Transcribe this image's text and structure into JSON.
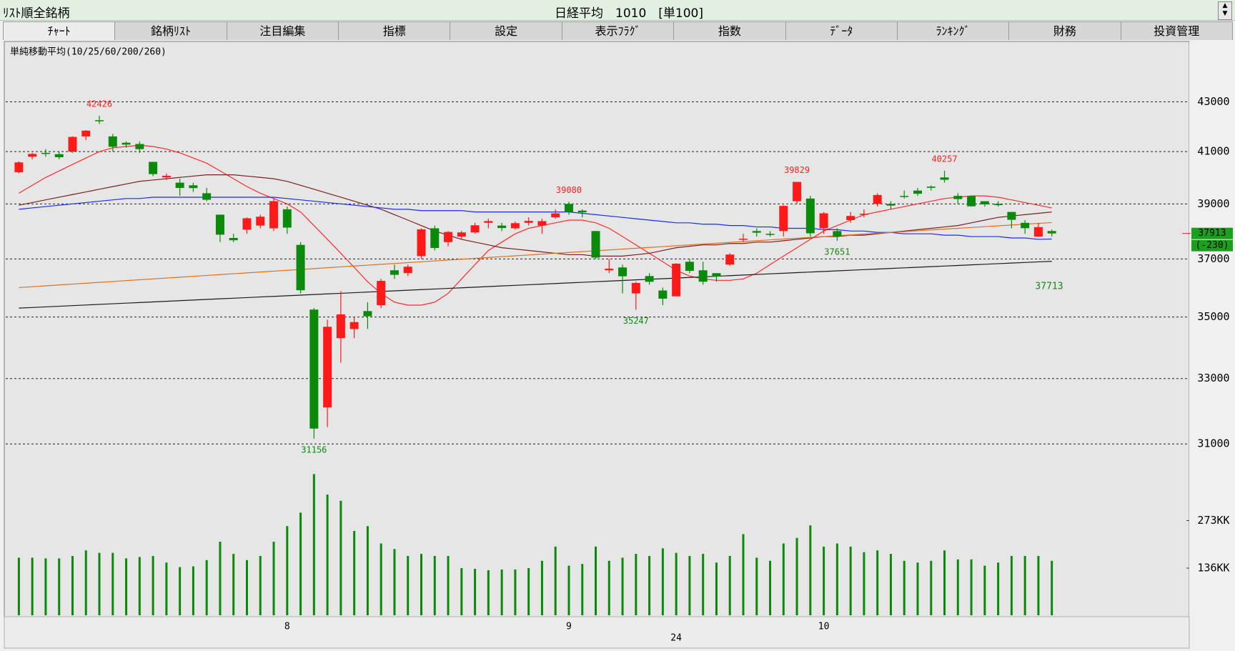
{
  "header": {
    "title": "ﾘｽﾄ順全銘柄",
    "instrument": "日経平均　1010　[単100]"
  },
  "tabs": [
    "ﾁｬｰﾄ",
    "銘柄ﾘｽﾄ",
    "注目編集",
    "指標",
    "設定",
    "表示ﾌﾗｸﾞ",
    "指数",
    "ﾃﾞｰﾀ",
    "ﾗﾝｷﾝｸﾞ",
    "財務",
    "投資管理"
  ],
  "chart_data": {
    "type": "candlestick",
    "subtitle": "単純移動平均(10/25/60/200/260)",
    "log": true,
    "grid": true,
    "up_color": "#ff1a1a",
    "down_color": "#0a8a0a",
    "categories": [
      null,
      null,
      null,
      null,
      null,
      null,
      null,
      null,
      null,
      null,
      null,
      null,
      null,
      null,
      null,
      null,
      null,
      null,
      null,
      null,
      "8",
      null,
      null,
      null,
      null,
      null,
      null,
      null,
      null,
      null,
      null,
      null,
      null,
      null,
      null,
      null,
      null,
      null,
      null,
      null,
      null,
      "9",
      null,
      null,
      null,
      null,
      null,
      null,
      null,
      null,
      null,
      null,
      null,
      null,
      null,
      null,
      null,
      null,
      null,
      null,
      "10",
      null,
      null,
      null,
      null,
      null,
      null,
      null,
      null,
      null,
      null,
      null,
      null,
      null,
      null,
      null,
      null,
      null
    ],
    "year_label": "24",
    "ohlc": {
      "open": [
        40200,
        40800,
        40950,
        40900,
        41000,
        41600,
        42250,
        41600,
        41350,
        41300,
        40600,
        40000,
        39800,
        39700,
        39400,
        38600,
        37750,
        38050,
        38200,
        38100,
        38800,
        37500,
        35250,
        32100,
        34300,
        34600,
        35200,
        35400,
        36600,
        36500,
        37100,
        38100,
        37600,
        37800,
        37950,
        38300,
        38200,
        38100,
        38300,
        38200,
        38500,
        39000,
        38750,
        38000,
        36600,
        36700,
        35800,
        36400,
        35900,
        35700,
        36900,
        36600,
        36500,
        36800,
        37700,
        38000,
        37900,
        38000,
        39100,
        39200,
        38100,
        38000,
        38400,
        38600,
        39000,
        39000,
        39300,
        39500,
        39650,
        40000,
        39300,
        39300,
        39100,
        39000,
        38700,
        38300,
        37800,
        38000
      ],
      "high": [
        40620,
        40950,
        41100,
        41000,
        41600,
        41850,
        42426,
        41700,
        41400,
        41400,
        40600,
        40150,
        39950,
        39800,
        39600,
        38600,
        37900,
        38500,
        38600,
        39200,
        38900,
        37600,
        35300,
        34911,
        35880,
        35000,
        35500,
        36300,
        36800,
        36800,
        38100,
        38200,
        38000,
        38000,
        38300,
        38450,
        38300,
        38350,
        38500,
        38450,
        38800,
        39080,
        38800,
        38000,
        37000,
        36800,
        36200,
        36500,
        36000,
        36850,
        37000,
        36900,
        36500,
        37200,
        37900,
        38100,
        38000,
        38950,
        39829,
        39300,
        38700,
        38100,
        38700,
        38800,
        39400,
        39100,
        39500,
        39600,
        39700,
        40257,
        39400,
        39300,
        39100,
        39100,
        38700,
        38400,
        38300,
        38050
      ],
      "low": [
        40160,
        40700,
        40800,
        40700,
        40950,
        41450,
        42100,
        41000,
        41150,
        40950,
        40050,
        39900,
        39300,
        39450,
        39100,
        37600,
        37600,
        37900,
        38100,
        38000,
        37900,
        35800,
        31156,
        31500,
        33500,
        34300,
        34600,
        35300,
        36300,
        36400,
        37000,
        37300,
        37450,
        37700,
        37900,
        38100,
        38000,
        38050,
        38200,
        37900,
        38450,
        38600,
        38500,
        37000,
        36500,
        35800,
        35247,
        36100,
        35400,
        35700,
        36500,
        36100,
        36200,
        36750,
        37600,
        37800,
        37800,
        37800,
        39000,
        37800,
        37900,
        37651,
        38300,
        38500,
        38900,
        38800,
        39200,
        39300,
        39500,
        39800,
        39000,
        38900,
        38900,
        38900,
        38100,
        37900,
        37800,
        37800
      ],
      "close": [
        40580,
        40910,
        40910,
        40780,
        41580,
        41830,
        42224,
        41190,
        41275,
        41097,
        40126,
        40063,
        39599,
        39594,
        39154,
        37869,
        37667,
        38468,
        38525,
        39101,
        38126,
        35909,
        31458,
        34675,
        35089,
        34831,
        35025,
        36232,
        36442,
        36726,
        38062,
        37389,
        37967,
        37951,
        38211,
        38364,
        38110,
        38288,
        38371,
        38362,
        38647,
        38700,
        38686,
        37047,
        36657,
        36391,
        36159,
        36200,
        35620,
        36833,
        36581,
        36203,
        36380,
        37155,
        37723,
        37940,
        37870,
        38925,
        39829,
        37919,
        38651,
        37808,
        38552,
        38635,
        39332,
        38937,
        39277,
        39380,
        39605,
        39910,
        39180,
        38911,
        38981,
        38954,
        38411,
        38104,
        38143,
        37913
      ]
    },
    "moving_averages": [
      {
        "color": "#ff2a2a",
        "values": [
          39400,
          39700,
          40000,
          40250,
          40500,
          40750,
          41000,
          41150,
          41200,
          41250,
          41200,
          41100,
          40950,
          40750,
          40550,
          40250,
          39950,
          39650,
          39400,
          39200,
          39000,
          38700,
          38200,
          37700,
          37200,
          36700,
          36200,
          35800,
          35500,
          35400,
          35400,
          35500,
          35800,
          36300,
          36800,
          37300,
          37600,
          37900,
          38100,
          38200,
          38300,
          38400,
          38400,
          38300,
          38100,
          37800,
          37500,
          37200,
          36900,
          36600,
          36400,
          36300,
          36250,
          36250,
          36300,
          36500,
          36800,
          37100,
          37400,
          37700,
          38000,
          38200,
          38400,
          38600,
          38700,
          38800,
          38900,
          39000,
          39100,
          39200,
          39250,
          39300,
          39300,
          39250,
          39150,
          39050,
          38950,
          38850
        ]
      },
      {
        "color": "#7a2020",
        "values": [
          38950,
          39050,
          39150,
          39250,
          39350,
          39450,
          39550,
          39650,
          39750,
          39850,
          39900,
          39950,
          40000,
          40050,
          40100,
          40100,
          40100,
          40050,
          40000,
          39950,
          39850,
          39700,
          39550,
          39400,
          39250,
          39100,
          38950,
          38800,
          38600,
          38400,
          38200,
          38000,
          37850,
          37700,
          37600,
          37500,
          37400,
          37350,
          37300,
          37250,
          37200,
          37150,
          37150,
          37100,
          37100,
          37100,
          37150,
          37200,
          37300,
          37400,
          37450,
          37500,
          37500,
          37550,
          37550,
          37600,
          37600,
          37650,
          37700,
          37750,
          37800,
          37800,
          37850,
          37850,
          37900,
          37950,
          38000,
          38050,
          38100,
          38150,
          38200,
          38300,
          38400,
          38500,
          38550,
          38600,
          38650,
          38700
        ]
      },
      {
        "color": "#1a2aff",
        "values": [
          38800,
          38850,
          38900,
          38950,
          39000,
          39050,
          39100,
          39150,
          39200,
          39200,
          39250,
          39250,
          39250,
          39250,
          39250,
          39250,
          39250,
          39250,
          39250,
          39250,
          39200,
          39150,
          39100,
          39050,
          39000,
          38950,
          38900,
          38850,
          38800,
          38800,
          38750,
          38750,
          38750,
          38750,
          38700,
          38700,
          38700,
          38700,
          38700,
          38700,
          38700,
          38700,
          38650,
          38600,
          38550,
          38500,
          38450,
          38400,
          38350,
          38300,
          38300,
          38250,
          38250,
          38200,
          38200,
          38150,
          38150,
          38100,
          38100,
          38100,
          38050,
          38050,
          38000,
          38000,
          37950,
          37950,
          37900,
          37900,
          37900,
          37850,
          37850,
          37800,
          37800,
          37800,
          37750,
          37750,
          37700,
          37713
        ]
      },
      {
        "color": "#e0701a",
        "values": [
          36000,
          36030,
          36060,
          36090,
          36120,
          36150,
          36180,
          36210,
          36240,
          36270,
          36300,
          36330,
          36360,
          36390,
          36420,
          36450,
          36480,
          36510,
          36540,
          36570,
          36600,
          36630,
          36660,
          36690,
          36720,
          36750,
          36780,
          36810,
          36840,
          36870,
          36900,
          36930,
          36960,
          36990,
          37020,
          37050,
          37080,
          37110,
          37140,
          37170,
          37200,
          37230,
          37260,
          37290,
          37320,
          37350,
          37380,
          37410,
          37440,
          37470,
          37500,
          37530,
          37560,
          37590,
          37620,
          37650,
          37680,
          37710,
          37740,
          37770,
          37800,
          37830,
          37860,
          37890,
          37920,
          37950,
          37980,
          38010,
          38040,
          38070,
          38100,
          38130,
          38160,
          38190,
          38220,
          38250,
          38280,
          38310
        ]
      },
      {
        "color": "#1a1a1a",
        "values": [
          35300,
          35321,
          35342,
          35363,
          35384,
          35405,
          35426,
          35447,
          35468,
          35489,
          35510,
          35531,
          35552,
          35573,
          35594,
          35615,
          35636,
          35657,
          35678,
          35699,
          35720,
          35741,
          35762,
          35783,
          35804,
          35825,
          35846,
          35867,
          35888,
          35909,
          35930,
          35951,
          35972,
          35993,
          36014,
          36035,
          36056,
          36077,
          36098,
          36119,
          36140,
          36161,
          36182,
          36203,
          36224,
          36245,
          36266,
          36287,
          36308,
          36329,
          36350,
          36371,
          36392,
          36413,
          36434,
          36455,
          36476,
          36497,
          36518,
          36539,
          36560,
          36581,
          36602,
          36623,
          36644,
          36665,
          36686,
          36707,
          36728,
          36749,
          36770,
          36791,
          36812,
          36833,
          36854,
          36875,
          36896,
          36917
        ]
      }
    ],
    "ylim": [
      30500,
      45400
    ],
    "yticks": [
      31000,
      33000,
      35000,
      37000,
      39000,
      41000,
      43000
    ],
    "change_label": "(-230)",
    "volume": {
      "color": "#0a8a0a",
      "ylim": [
        0,
        445
      ],
      "yticks": [
        {
          "value": 136,
          "label": "136KK"
        },
        {
          "value": 273,
          "label": "273KK"
        }
      ],
      "values": [
        166,
        166,
        164,
        164,
        171,
        187,
        180,
        180,
        164,
        168,
        171,
        152,
        139,
        141,
        159,
        212,
        177,
        159,
        171,
        212,
        257,
        296,
        407,
        348,
        330,
        243,
        257,
        207,
        191,
        171,
        177,
        171,
        171,
        136,
        134,
        130,
        132,
        132,
        136,
        157,
        198,
        143,
        148,
        198,
        157,
        166,
        177,
        171,
        193,
        180,
        171,
        177,
        152,
        171,
        234,
        166,
        157,
        207,
        223,
        259,
        198,
        207,
        198,
        182,
        187,
        177,
        157,
        152,
        157,
        187,
        161,
        161,
        143,
        152,
        171,
        171,
        171,
        157
      ]
    }
  }
}
